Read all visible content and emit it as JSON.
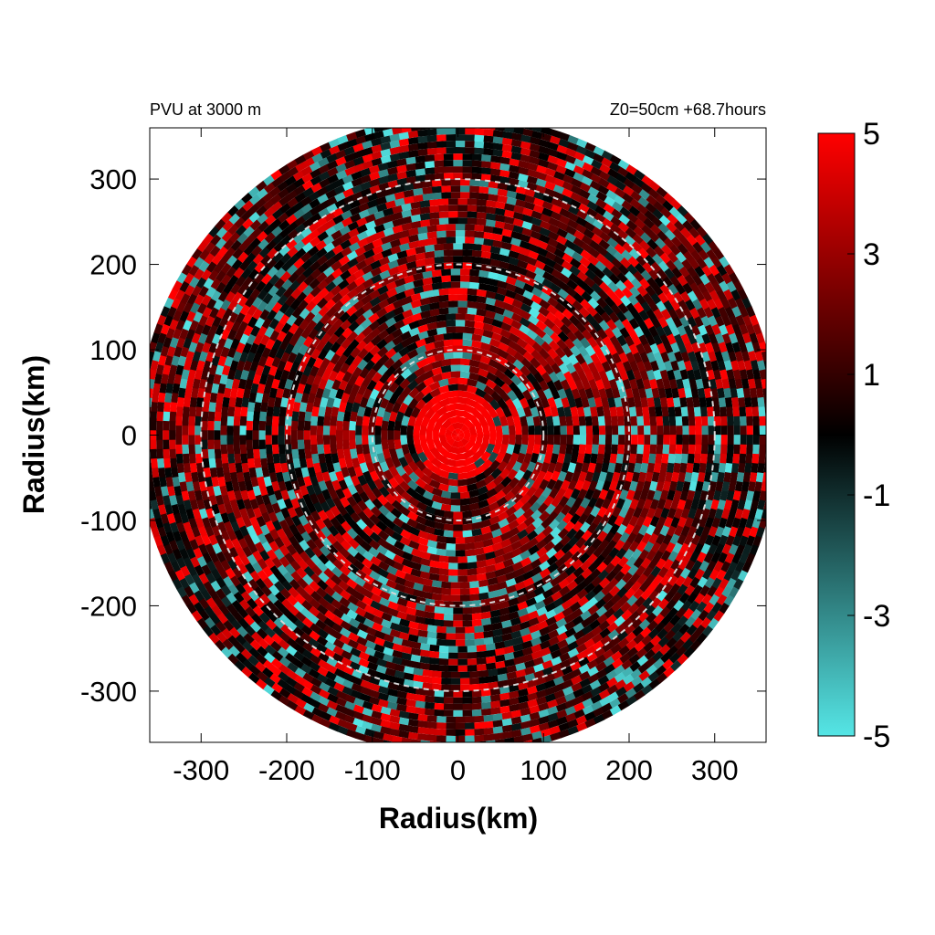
{
  "chart_data": {
    "type": "heatmap",
    "projection": "polar (storm-centred radius-azimuth field)",
    "title_left": "PVU at  3000 m",
    "title_right": "Z0=50cm  +68.7hours",
    "xlabel": "Radius(km)",
    "ylabel": "Radius(km)",
    "xlim": [
      -360,
      360
    ],
    "ylim": [
      -360,
      360
    ],
    "x_ticks": [
      -300,
      -200,
      -100,
      0,
      100,
      200,
      300
    ],
    "y_ticks": [
      300,
      200,
      100,
      0,
      -100,
      -200,
      -300
    ],
    "x_tick_labels": [
      "-300",
      "-200",
      "-100",
      "0",
      "100",
      "200",
      "300"
    ],
    "y_tick_labels": [
      "300",
      "200",
      "100",
      "0",
      "-100",
      "-200",
      "-300"
    ],
    "max_radius_km": 375,
    "range_rings_km": [
      100,
      200,
      300
    ],
    "range_ring_style": "white dashed",
    "core_high_region_radius_km": 55,
    "colorbar": {
      "min": -5,
      "max": 5,
      "ticks": [
        5,
        3,
        1,
        -1,
        -3,
        -5
      ],
      "tick_labels": [
        "5",
        "3",
        "1",
        "-1",
        "-3",
        "-5"
      ],
      "colors": {
        "low": "#55e6e6",
        "mid": "#000000",
        "high": "#ff0000"
      }
    },
    "grid": false,
    "legend": "colorbar right"
  }
}
